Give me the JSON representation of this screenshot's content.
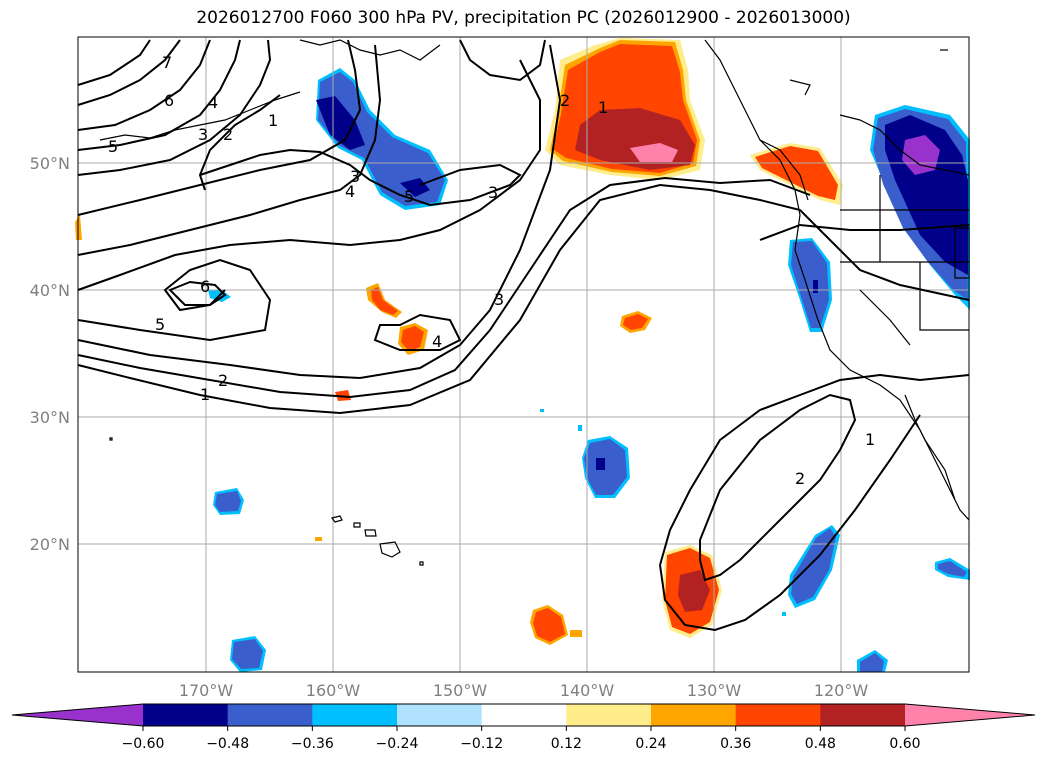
{
  "title": "2026012700 F060 300 hPa PV, precipitation PC (2026012900 - 2026013000)",
  "map": {
    "lat_ticks": [
      "50°N",
      "40°N",
      "30°N",
      "20°N"
    ],
    "lon_ticks": [
      "170°W",
      "160°W",
      "150°W",
      "140°W",
      "130°W",
      "120°W"
    ],
    "pv_contour_labels": [
      "1",
      "2",
      "3",
      "4",
      "5",
      "6",
      "7",
      "1",
      "2",
      "3",
      "4",
      "5",
      "6",
      "5",
      "4",
      "3",
      "2",
      "1",
      "2",
      "1",
      "3"
    ]
  },
  "colorbar": {
    "ticks": [
      "−0.60",
      "−0.48",
      "−0.36",
      "−0.24",
      "−0.12",
      "0.12",
      "0.24",
      "0.36",
      "0.48",
      "0.60"
    ],
    "colors": [
      "#9932cc",
      "#00008b",
      "#3a5fcd",
      "#00bfff",
      "#b0e2ff",
      "#ffffff",
      "#ffec8b",
      "#ffa500",
      "#ff4500",
      "#b22222",
      "#ff82ab"
    ]
  },
  "colors": {
    "neg_deep": "#00008b",
    "neg_mid": "#3a5fcd",
    "neg_light": "#00bfff",
    "neg_extreme": "#9932cc",
    "pos_light": "#ffec8b",
    "pos_mid": "#ffa500",
    "pos_strong": "#ff4500",
    "pos_deep": "#b22222",
    "pos_extreme": "#ff82ab"
  }
}
